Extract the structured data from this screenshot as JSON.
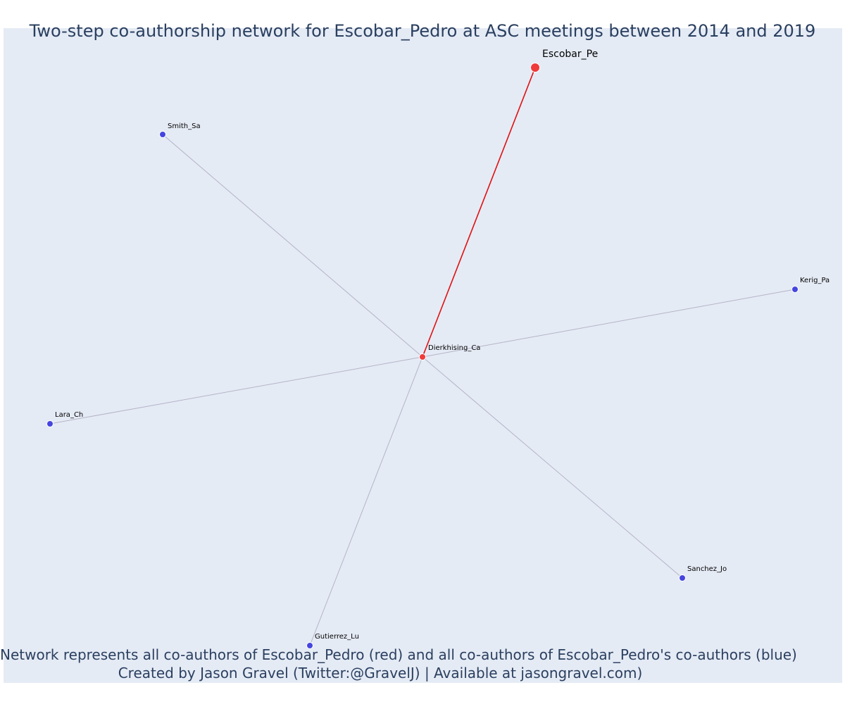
{
  "title": "Two-step co-authorship network for Escobar_Pedro at ASC meetings between 2014 and 2019",
  "footnote": {
    "line1": "Network represents all co-authors of Escobar_Pedro (red) and all co-authors of Escobar_Pedro's co-authors (blue)",
    "line2": "Created by Jason Gravel (Twitter:@GravelJ) | Available at jasongravel.com)"
  },
  "colors": {
    "background": "#e5ebf5",
    "focal": "#ef3b3b",
    "coauthor": "#ef3b3b",
    "second_degree": "#4545e0",
    "focal_edge": "#e01010",
    "other_edge": "#b4b4c8",
    "title": "#2a3f5f"
  },
  "nodes": [
    {
      "id": "Escobar_Pe",
      "label": "Escobar_Pe",
      "role": "focal"
    },
    {
      "id": "Dierkhising_Ca",
      "label": "Dierkhising_Ca",
      "role": "coauthor"
    },
    {
      "id": "Smith_Sa",
      "label": "Smith_Sa",
      "role": "second_degree"
    },
    {
      "id": "Kerig_Pa",
      "label": "Kerig_Pa",
      "role": "second_degree"
    },
    {
      "id": "Lara_Ch",
      "label": "Lara_Ch",
      "role": "second_degree"
    },
    {
      "id": "Sanchez_Jo",
      "label": "Sanchez_Jo",
      "role": "second_degree"
    },
    {
      "id": "Gutierrez_Lu",
      "label": "Gutierrez_Lu",
      "role": "second_degree"
    }
  ],
  "edges": [
    {
      "source": "Escobar_Pe",
      "target": "Dierkhising_Ca",
      "role": "focal"
    },
    {
      "source": "Dierkhising_Ca",
      "target": "Smith_Sa",
      "role": "other"
    },
    {
      "source": "Dierkhising_Ca",
      "target": "Kerig_Pa",
      "role": "other"
    },
    {
      "source": "Dierkhising_Ca",
      "target": "Lara_Ch",
      "role": "other"
    },
    {
      "source": "Dierkhising_Ca",
      "target": "Sanchez_Jo",
      "role": "other"
    },
    {
      "source": "Dierkhising_Ca",
      "target": "Gutierrez_Lu",
      "role": "other"
    }
  ]
}
